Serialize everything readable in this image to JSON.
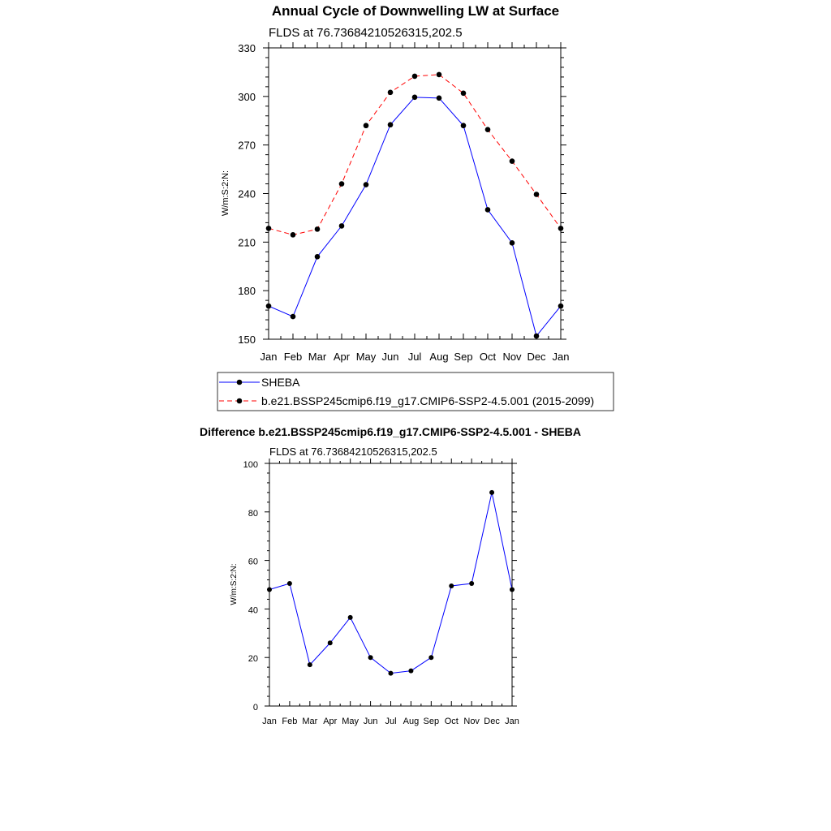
{
  "chart_data": [
    {
      "type": "line",
      "title": "Annual Cycle of Downwelling LW at Surface",
      "subtitle": "FLDS at 76.73684210526315,202.5",
      "xlabel": "",
      "ylabel": "W/m:S:2:N:",
      "categories": [
        "Jan",
        "Feb",
        "Mar",
        "Apr",
        "May",
        "Jun",
        "Jul",
        "Aug",
        "Sep",
        "Oct",
        "Nov",
        "Dec",
        "Jan"
      ],
      "ylim": [
        150,
        330
      ],
      "yticks": [
        150,
        180,
        210,
        240,
        270,
        300,
        330
      ],
      "grid": false,
      "legend_position": "below",
      "series": [
        {
          "name": "SHEBA",
          "color": "#0000ff",
          "dash": "solid",
          "values": [
            170.5,
            164,
            201,
            220,
            245.5,
            282.5,
            299.5,
            299,
            282,
            230,
            209.5,
            152,
            170.5
          ]
        },
        {
          "name": "b.e21.BSSP245cmip6.f19_g17.CMIP6-SSP2-4.5.001 (2015-2099)",
          "color": "#ff0000",
          "dash": "dashed",
          "values": [
            218.5,
            214.5,
            218,
            246,
            282,
            302.5,
            312.5,
            313.5,
            302,
            279.5,
            260,
            239.5,
            218.5
          ]
        }
      ]
    },
    {
      "type": "line",
      "title": "Difference b.e21.BSSP245cmip6.f19_g17.CMIP6-SSP2-4.5.001 - SHEBA",
      "subtitle": "FLDS at 76.73684210526315,202.5",
      "xlabel": "",
      "ylabel": "W/m:S:2:N:",
      "categories": [
        "Jan",
        "Feb",
        "Mar",
        "Apr",
        "May",
        "Jun",
        "Jul",
        "Aug",
        "Sep",
        "Oct",
        "Nov",
        "Dec",
        "Jan"
      ],
      "ylim": [
        0,
        100
      ],
      "yticks": [
        0,
        20,
        40,
        60,
        80,
        100
      ],
      "grid": false,
      "series": [
        {
          "color": "#0000ff",
          "dash": "solid",
          "values": [
            48,
            50.5,
            17,
            26,
            36.5,
            20,
            13.5,
            14.5,
            20,
            49.5,
            50.5,
            88,
            48
          ]
        }
      ]
    }
  ]
}
